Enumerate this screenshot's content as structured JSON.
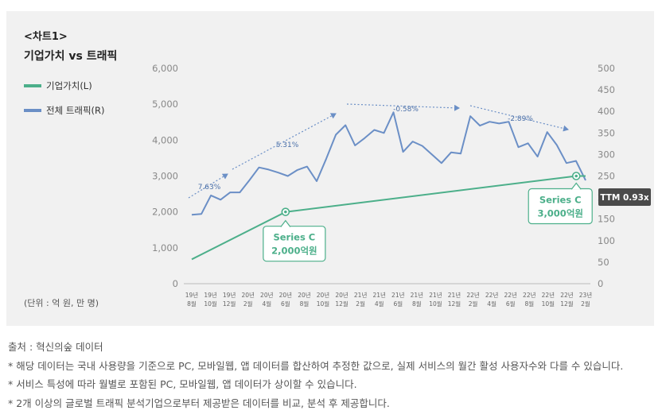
{
  "header": {
    "label": "<차트1>",
    "title": "기업가치 vs 트래픽"
  },
  "legend": [
    {
      "label": "기업가치(L)",
      "color": "#4caf8a"
    },
    {
      "label": "전체 트래픽(R)",
      "color": "#6b8fc6"
    }
  ],
  "unit_note": "(단위 : 억 원, 만 명)",
  "chart_data": {
    "type": "line",
    "title": "기업가치 vs 트래픽",
    "left_axis": {
      "label": "기업가치(L)",
      "range": [
        0,
        6000
      ],
      "ticks": [
        "0",
        "1,000",
        "2,000",
        "3,000",
        "4,000",
        "5,000",
        "6,000"
      ]
    },
    "right_axis": {
      "label": "전체 트래픽(R)",
      "range": [
        0,
        500
      ],
      "ticks": [
        "0",
        "50",
        "100",
        "150",
        "200",
        "250",
        "300",
        "350",
        "400",
        "450",
        "500"
      ]
    },
    "x_tick_labels": [
      [
        "19년",
        "8월"
      ],
      [
        "19년",
        "10월"
      ],
      [
        "19년",
        "12월"
      ],
      [
        "20년",
        "2월"
      ],
      [
        "20년",
        "4월"
      ],
      [
        "20년",
        "6월"
      ],
      [
        "20년",
        "8월"
      ],
      [
        "20년",
        "10월"
      ],
      [
        "20년",
        "12월"
      ],
      [
        "21년",
        "2월"
      ],
      [
        "21년",
        "4월"
      ],
      [
        "21년",
        "6월"
      ],
      [
        "21년",
        "8월"
      ],
      [
        "21년",
        "10월"
      ],
      [
        "21년",
        "12월"
      ],
      [
        "22년",
        "2월"
      ],
      [
        "22년",
        "4월"
      ],
      [
        "22년",
        "6월"
      ],
      [
        "22년",
        "8월"
      ],
      [
        "22년",
        "10월"
      ],
      [
        "22년",
        "12월"
      ],
      [
        "23년",
        "2월"
      ]
    ],
    "series": [
      {
        "name": "전체 트래픽(R)",
        "axis": "right",
        "color": "#6b8fc6",
        "values": [
          160,
          162,
          205,
          195,
          212,
          212,
          240,
          270,
          265,
          258,
          250,
          264,
          272,
          238,
          290,
          346,
          368,
          321,
          338,
          357,
          350,
          398,
          306,
          330,
          320,
          300,
          280,
          305,
          302,
          389,
          367,
          376,
          372,
          376,
          317,
          326,
          295,
          352,
          322,
          280,
          285,
          240
        ]
      },
      {
        "name": "기업가치(L)",
        "axis": "left",
        "color": "#4caf8a",
        "points": [
          {
            "x_index": 0,
            "value": 680
          },
          {
            "x_index": 5,
            "value": 2000
          },
          {
            "x_index": 20.5,
            "value": 3000
          },
          {
            "x_index": 21,
            "value": 3000
          }
        ]
      }
    ],
    "annotations": {
      "trends": [
        "7.63%",
        "5.31%",
        "-0.58%",
        "-2.89%"
      ],
      "callouts": [
        {
          "line1": "Series C",
          "line2": "2,000억원",
          "x_index": 5,
          "value": 2000
        },
        {
          "line1": "Series C",
          "line2": "3,000억원",
          "x_index": 20.5,
          "value": 3000
        }
      ],
      "ttm": "TTM 0.93x"
    }
  },
  "notes": [
    "출처 : 혁신의숲 데이터",
    "* 해당 데이터는 국내 사용량을 기준으로 PC, 모바일웹, 앱 데이터를 합산하여 추정한 값으로, 실제 서비스의 월간 활성 사용자수와 다를 수 있습니다.",
    "* 서비스 특성에 따라 월별로 포함된 PC, 모바일웹, 앱 데이터가 상이할 수 있습니다.",
    "* 2개 이상의 글로벌 트래픽 분석기업으로부터 제공받은 데이터를 비교, 분석 후 제공합니다."
  ]
}
